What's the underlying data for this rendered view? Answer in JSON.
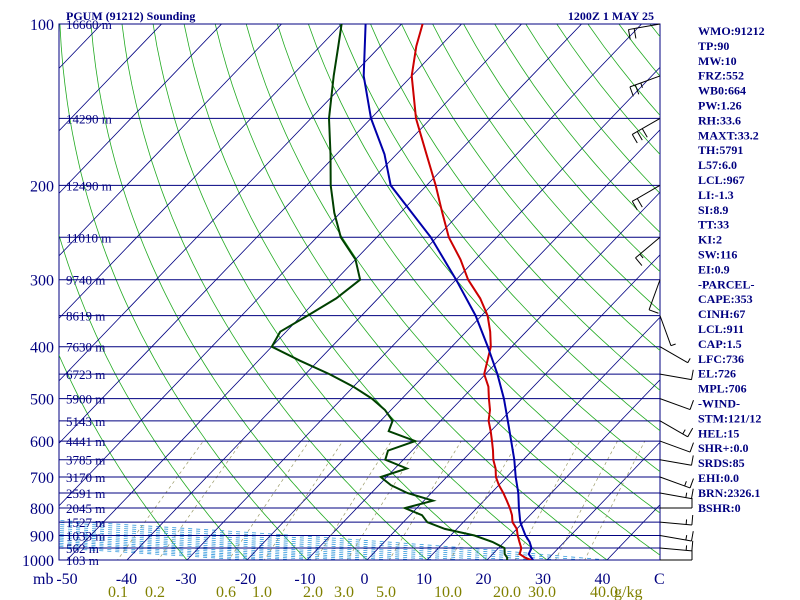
{
  "header": {
    "station": "PGUM (91212) Sounding",
    "valid_time": "1200Z  1 MAY 25"
  },
  "sidebar": {
    "lines": [
      "WMO:91212",
      "TP:90",
      "MW:10",
      "FRZ:552",
      "WB0:664",
      "PW:1.26",
      "RH:33.6",
      "MAXT:33.2",
      "TH:5791",
      "L57:6.0",
      "LCL:967",
      "LI:-1.3",
      "SI:8.9",
      "TT:33",
      "KI:2",
      "SW:116",
      "EI:0.9",
      "-PARCEL-",
      "CAPE:353",
      "CINH:67",
      "LCL:911",
      "CAP:1.5",
      "LFC:736",
      "EL:726",
      "MPL:706",
      "-WIND-",
      "STM:121/12",
      "HEL:15",
      "SHR+:0.0",
      "SRDS:85",
      "EHI:0.0",
      "BRN:2326.1",
      "BSHR:0"
    ]
  },
  "chart_data": {
    "type": "skew-t log-p",
    "xlabel": "C",
    "ylabel": "mb",
    "xlim": [
      -50,
      50
    ],
    "ylim": [
      1000,
      100
    ],
    "pressure_ticks": [
      {
        "p": 100,
        "label": "100"
      },
      {
        "p": 200,
        "label": "200"
      },
      {
        "p": 300,
        "label": "300"
      },
      {
        "p": 400,
        "label": "400"
      },
      {
        "p": 500,
        "label": "500"
      },
      {
        "p": 600,
        "label": "600"
      },
      {
        "p": 700,
        "label": "700"
      },
      {
        "p": 800,
        "label": "800"
      },
      {
        "p": 900,
        "label": "900"
      },
      {
        "p": 1000,
        "label": "1000"
      }
    ],
    "temperature_ticks": [
      {
        "t": -50,
        "label": "-50"
      },
      {
        "t": -40,
        "label": "-40"
      },
      {
        "t": -30,
        "label": "-30"
      },
      {
        "t": -20,
        "label": "-20"
      },
      {
        "t": -10,
        "label": "-10"
      },
      {
        "t": 0,
        "label": "0"
      },
      {
        "t": 10,
        "label": "10"
      },
      {
        "t": 20,
        "label": "20"
      },
      {
        "t": 30,
        "label": "30"
      },
      {
        "t": 40,
        "label": "40"
      }
    ],
    "mixing_ratio_ticks": [
      {
        "w": 0.1,
        "label": "0.1"
      },
      {
        "w": 0.2,
        "label": "0.2"
      },
      {
        "w": 0.6,
        "label": "0.6"
      },
      {
        "w": 1.0,
        "label": "1.0"
      },
      {
        "w": 2.0,
        "label": "2.0"
      },
      {
        "w": 3.0,
        "label": "3.0"
      },
      {
        "w": 5.0,
        "label": "5.0"
      },
      {
        "w": 10.0,
        "label": "10.0"
      },
      {
        "w": 20.0,
        "label": "20.0"
      },
      {
        "w": 30.0,
        "label": "30.0"
      },
      {
        "w": 40.0,
        "label": "40.0"
      }
    ],
    "mixing_ratio_unit": "g/kg",
    "height_labels": [
      {
        "p": 100,
        "label": "16660 m"
      },
      {
        "p": 150,
        "label": "14290 m"
      },
      {
        "p": 200,
        "label": "12490 m"
      },
      {
        "p": 250,
        "label": "11010 m"
      },
      {
        "p": 300,
        "label": "9740 m"
      },
      {
        "p": 350,
        "label": "8619 m"
      },
      {
        "p": 400,
        "label": "7630 m"
      },
      {
        "p": 450,
        "label": "6723 m"
      },
      {
        "p": 500,
        "label": "5900 m"
      },
      {
        "p": 550,
        "label": "5143 m"
      },
      {
        "p": 600,
        "label": "4441 m"
      },
      {
        "p": 650,
        "label": "3785 m"
      },
      {
        "p": 700,
        "label": "3170 m"
      },
      {
        "p": 750,
        "label": "2591 m"
      },
      {
        "p": 800,
        "label": "2045 m"
      },
      {
        "p": 850,
        "label": "1527 m"
      },
      {
        "p": 900,
        "label": "1033 m"
      },
      {
        "p": 950,
        "label": "562 m"
      },
      {
        "p": 1000,
        "label": "103 m"
      }
    ],
    "series": [
      {
        "color": "#cc0000",
        "points": [
          [
            1005,
            28.0
          ],
          [
            990,
            26.0
          ],
          [
            975,
            24.5
          ],
          [
            950,
            23.8
          ],
          [
            925,
            22.5
          ],
          [
            900,
            21.2
          ],
          [
            875,
            20.0
          ],
          [
            850,
            18.2
          ],
          [
            825,
            17.0
          ],
          [
            800,
            15.5
          ],
          [
            775,
            13.8
          ],
          [
            750,
            12.0
          ],
          [
            725,
            10.0
          ],
          [
            700,
            8.2
          ],
          [
            675,
            6.8
          ],
          [
            650,
            5.0
          ],
          [
            625,
            3.5
          ],
          [
            600,
            1.8
          ],
          [
            575,
            0.0
          ],
          [
            550,
            -2.0
          ],
          [
            525,
            -3.5
          ],
          [
            500,
            -5.5
          ],
          [
            475,
            -7.5
          ],
          [
            450,
            -10.2
          ],
          [
            425,
            -11.8
          ],
          [
            400,
            -13.5
          ],
          [
            375,
            -16.0
          ],
          [
            350,
            -19.0
          ],
          [
            325,
            -23.0
          ],
          [
            300,
            -28.0
          ],
          [
            275,
            -32.5
          ],
          [
            250,
            -38.0
          ],
          [
            225,
            -43.0
          ],
          [
            200,
            -48.5
          ],
          [
            175,
            -55.0
          ],
          [
            150,
            -62.5
          ],
          [
            125,
            -70.0
          ],
          [
            110,
            -74.0
          ],
          [
            100,
            -76.5
          ]
        ]
      },
      {
        "color": "#004000",
        "points": [
          [
            1005,
            23.5
          ],
          [
            990,
            23.0
          ],
          [
            975,
            22.0
          ],
          [
            950,
            21.0
          ],
          [
            925,
            18.0
          ],
          [
            900,
            14.0
          ],
          [
            875,
            8.0
          ],
          [
            850,
            4.0
          ],
          [
            825,
            2.0
          ],
          [
            800,
            -2.0
          ],
          [
            775,
            1.5
          ],
          [
            750,
            -4.0
          ],
          [
            725,
            -8.0
          ],
          [
            700,
            -11.0
          ],
          [
            675,
            -8.0
          ],
          [
            650,
            -13.0
          ],
          [
            625,
            -14.0
          ],
          [
            600,
            -11.0
          ],
          [
            575,
            -17.0
          ],
          [
            550,
            -18.0
          ],
          [
            525,
            -21.0
          ],
          [
            500,
            -25.0
          ],
          [
            475,
            -30.0
          ],
          [
            450,
            -36.0
          ],
          [
            425,
            -43.0
          ],
          [
            400,
            -50.0
          ],
          [
            375,
            -51.0
          ],
          [
            350,
            -49.0
          ],
          [
            325,
            -47.0
          ],
          [
            300,
            -46.0
          ],
          [
            275,
            -50.0
          ],
          [
            250,
            -56.0
          ],
          [
            225,
            -61.0
          ],
          [
            200,
            -66.0
          ],
          [
            175,
            -71.0
          ],
          [
            150,
            -77.0
          ],
          [
            125,
            -83.0
          ],
          [
            110,
            -87.0
          ],
          [
            100,
            -90.0
          ]
        ]
      },
      {
        "color": "#0000aa",
        "points": [
          [
            1005,
            28.0
          ],
          [
            975,
            26.0
          ],
          [
            950,
            25.5
          ],
          [
            925,
            24.2
          ],
          [
            900,
            22.5
          ],
          [
            850,
            19.5
          ],
          [
            800,
            17.0
          ],
          [
            750,
            14.5
          ],
          [
            700,
            11.5
          ],
          [
            650,
            8.5
          ],
          [
            600,
            5.0
          ],
          [
            550,
            1.2
          ],
          [
            500,
            -3.0
          ],
          [
            450,
            -8.0
          ],
          [
            400,
            -14.0
          ],
          [
            350,
            -21.0
          ],
          [
            300,
            -30.0
          ],
          [
            250,
            -41.0
          ],
          [
            200,
            -56.0
          ],
          [
            175,
            -62.0
          ],
          [
            150,
            -70.0
          ],
          [
            125,
            -78.0
          ],
          [
            100,
            -86.0
          ]
        ]
      }
    ],
    "wind_barbs": [
      {
        "p": 1000,
        "dir": 90,
        "spd": 10
      },
      {
        "p": 950,
        "dir": 95,
        "spd": 15
      },
      {
        "p": 900,
        "dir": 100,
        "spd": 15
      },
      {
        "p": 850,
        "dir": 95,
        "spd": 15
      },
      {
        "p": 800,
        "dir": 90,
        "spd": 10
      },
      {
        "p": 750,
        "dir": 100,
        "spd": 15
      },
      {
        "p": 700,
        "dir": 110,
        "spd": 15
      },
      {
        "p": 650,
        "dir": 100,
        "spd": 10
      },
      {
        "p": 600,
        "dir": 110,
        "spd": 10
      },
      {
        "p": 550,
        "dir": 120,
        "spd": 15
      },
      {
        "p": 500,
        "dir": 110,
        "spd": 10
      },
      {
        "p": 450,
        "dir": 100,
        "spd": 10
      },
      {
        "p": 400,
        "dir": 120,
        "spd": 5
      },
      {
        "p": 350,
        "dir": 160,
        "spd": 5
      },
      {
        "p": 300,
        "dir": 200,
        "spd": 10
      },
      {
        "p": 250,
        "dir": 230,
        "spd": 15
      },
      {
        "p": 200,
        "dir": 240,
        "spd": 20
      },
      {
        "p": 150,
        "dir": 240,
        "spd": 30
      },
      {
        "p": 125,
        "dir": 250,
        "spd": 25
      },
      {
        "p": 100,
        "dir": 260,
        "spd": 20
      }
    ],
    "grid": true,
    "legend": "none"
  }
}
